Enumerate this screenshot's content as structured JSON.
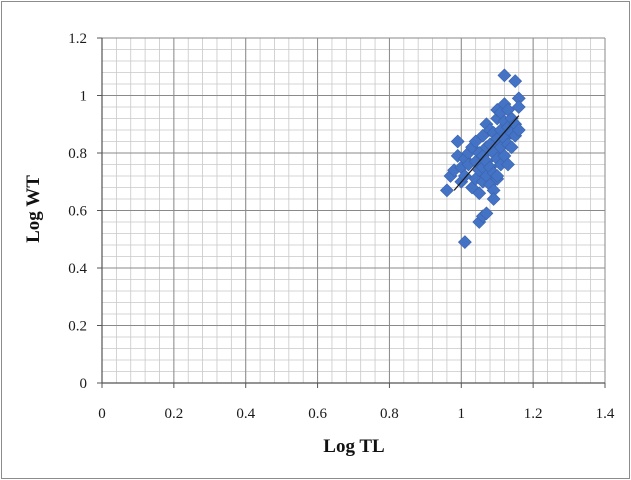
{
  "chart_data": {
    "type": "scatter",
    "title": "",
    "xlabel": "Log TL",
    "ylabel": "Log WT",
    "xlim": [
      0,
      1.4
    ],
    "ylim": [
      0,
      1.2
    ],
    "x_ticks": [
      "0",
      "0.2",
      "0.4",
      "0.6",
      "0.8",
      "1",
      "1.2",
      "1.4"
    ],
    "y_ticks": [
      "0",
      "0.2",
      "0.4",
      "0.6",
      "0.8",
      "1",
      "1.2"
    ],
    "grid": true,
    "legend": "none",
    "marker_color": "#4472C4",
    "trendline_color": "#1a1a1a",
    "trendline": {
      "x": [
        0.98,
        1.16
      ],
      "y": [
        0.67,
        0.93
      ]
    },
    "series": [
      {
        "x": [
          0.96,
          0.97,
          0.98,
          0.99,
          0.99,
          1.0,
          1.0,
          1.01,
          1.01,
          1.02,
          1.02,
          1.03,
          1.03,
          1.04,
          1.04,
          1.04,
          1.05,
          1.05,
          1.05,
          1.06,
          1.06,
          1.06,
          1.06,
          1.07,
          1.07,
          1.07,
          1.07,
          1.08,
          1.08,
          1.08,
          1.08,
          1.09,
          1.09,
          1.09,
          1.09,
          1.1,
          1.1,
          1.1,
          1.1,
          1.1,
          1.11,
          1.11,
          1.11,
          1.11,
          1.12,
          1.12,
          1.12,
          1.12,
          1.13,
          1.13,
          1.13,
          1.14,
          1.14,
          1.14,
          1.15,
          1.15,
          1.16,
          1.16,
          1.01,
          1.05,
          1.06,
          1.07,
          1.12,
          1.15,
          1.16,
          1.09,
          1.1,
          1.13
        ],
        "y": [
          0.67,
          0.72,
          0.74,
          0.84,
          0.79,
          0.7,
          0.75,
          0.78,
          0.72,
          0.8,
          0.76,
          0.82,
          0.68,
          0.71,
          0.77,
          0.84,
          0.66,
          0.74,
          0.8,
          0.7,
          0.79,
          0.86,
          0.75,
          0.72,
          0.82,
          0.9,
          0.77,
          0.69,
          0.75,
          0.83,
          0.88,
          0.67,
          0.73,
          0.8,
          0.87,
          0.71,
          0.78,
          0.85,
          0.92,
          0.95,
          0.76,
          0.82,
          0.88,
          0.94,
          0.79,
          0.85,
          0.91,
          0.97,
          0.83,
          0.89,
          0.95,
          0.82,
          0.87,
          0.92,
          0.86,
          0.9,
          0.88,
          0.99,
          0.49,
          0.56,
          0.58,
          0.59,
          1.07,
          1.05,
          0.96,
          0.64,
          0.72,
          0.76
        ]
      }
    ]
  }
}
